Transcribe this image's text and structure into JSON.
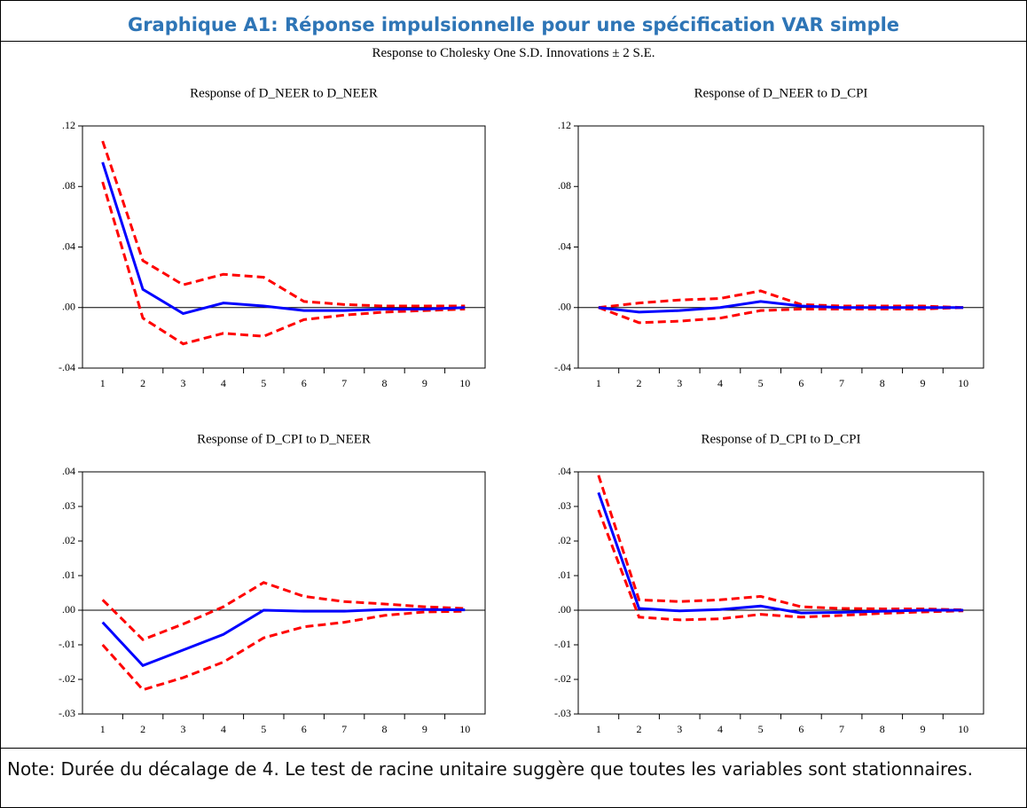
{
  "title": "Graphique A1: Réponse impulsionnelle pour une spécification VAR simple",
  "subtitle": "Response to Cholesky One S.D. Innovations ± 2 S.E.",
  "note": "Note: Durée du décalage de 4. Le test de racine unitaire suggère que toutes les variables sont stationnaires.",
  "chart_data": [
    {
      "type": "line",
      "title": "Response of D_NEER to D_NEER",
      "categories": [
        "1",
        "2",
        "3",
        "4",
        "5",
        "6",
        "7",
        "8",
        "9",
        "10"
      ],
      "ylim": [
        -0.04,
        0.12
      ],
      "yticks": [
        {
          "value": -0.04,
          "label": "-.04"
        },
        {
          "value": 0,
          "label": ".00"
        },
        {
          "value": 0.04,
          "label": ".04"
        },
        {
          "value": 0.08,
          "label": ".08"
        },
        {
          "value": 0.12,
          "label": ".12"
        }
      ],
      "series": [
        {
          "color": "#ff0000",
          "style": "dashed",
          "values": [
            0.11,
            0.031,
            0.015,
            0.022,
            0.02,
            0.004,
            0.002,
            0.001,
            0.001,
            0.001
          ]
        },
        {
          "color": "#ff0000",
          "style": "dashed",
          "values": [
            0.083,
            -0.007,
            -0.024,
            -0.017,
            -0.019,
            -0.008,
            -0.005,
            -0.003,
            -0.002,
            -0.001
          ]
        },
        {
          "color": "#0000ff",
          "style": "solid",
          "values": [
            0.096,
            0.012,
            -0.004,
            0.003,
            0.001,
            -0.002,
            -0.002,
            -0.001,
            -0.001,
            0
          ]
        }
      ]
    },
    {
      "type": "line",
      "title": "Response of D_NEER to D_CPI",
      "categories": [
        "1",
        "2",
        "3",
        "4",
        "5",
        "6",
        "7",
        "8",
        "9",
        "10"
      ],
      "ylim": [
        -0.04,
        0.12
      ],
      "yticks": [
        {
          "value": -0.04,
          "label": "-.04"
        },
        {
          "value": 0,
          "label": ".00"
        },
        {
          "value": 0.04,
          "label": ".04"
        },
        {
          "value": 0.08,
          "label": ".08"
        },
        {
          "value": 0.12,
          "label": ".12"
        }
      ],
      "series": [
        {
          "color": "#ff0000",
          "style": "dashed",
          "values": [
            0,
            0.003,
            0.005,
            0.006,
            0.011,
            0.002,
            0.001,
            0.001,
            0.001,
            0
          ]
        },
        {
          "color": "#ff0000",
          "style": "dashed",
          "values": [
            0,
            -0.01,
            -0.009,
            -0.007,
            -0.002,
            -0.001,
            -0.001,
            -0.001,
            -0.001,
            0
          ]
        },
        {
          "color": "#0000ff",
          "style": "solid",
          "values": [
            0,
            -0.003,
            -0.002,
            0,
            0.004,
            0.001,
            0,
            0,
            0,
            0
          ]
        }
      ]
    },
    {
      "type": "line",
      "title": "Response of D_CPI to D_NEER",
      "categories": [
        "1",
        "2",
        "3",
        "4",
        "5",
        "6",
        "7",
        "8",
        "9",
        "10"
      ],
      "ylim": [
        -0.03,
        0.04
      ],
      "yticks": [
        {
          "value": -0.03,
          "label": "-.03"
        },
        {
          "value": -0.02,
          "label": "-.02"
        },
        {
          "value": -0.01,
          "label": "-.01"
        },
        {
          "value": 0,
          "label": ".00"
        },
        {
          "value": 0.01,
          "label": ".01"
        },
        {
          "value": 0.02,
          "label": ".02"
        },
        {
          "value": 0.03,
          "label": ".03"
        },
        {
          "value": 0.04,
          "label": ".04"
        }
      ],
      "series": [
        {
          "color": "#ff0000",
          "style": "dashed",
          "values": [
            0.003,
            -0.0085,
            -0.004,
            0.001,
            0.008,
            0.004,
            0.0025,
            0.0018,
            0.001,
            0.0005
          ]
        },
        {
          "color": "#ff0000",
          "style": "dashed",
          "values": [
            -0.01,
            -0.023,
            -0.0195,
            -0.015,
            -0.008,
            -0.0048,
            -0.0035,
            -0.0015,
            -0.0005,
            -0.0003
          ]
        },
        {
          "color": "#0000ff",
          "style": "solid",
          "values": [
            -0.0035,
            -0.016,
            -0.0115,
            -0.007,
            0,
            -0.0003,
            -0.0003,
            0.0002,
            0.0002,
            0.0001
          ]
        }
      ]
    },
    {
      "type": "line",
      "title": "Response of D_CPI to D_CPI",
      "categories": [
        "1",
        "2",
        "3",
        "4",
        "5",
        "6",
        "7",
        "8",
        "9",
        "10"
      ],
      "ylim": [
        -0.03,
        0.04
      ],
      "yticks": [
        {
          "value": -0.03,
          "label": "-.03"
        },
        {
          "value": -0.02,
          "label": "-.02"
        },
        {
          "value": -0.01,
          "label": "-.01"
        },
        {
          "value": 0,
          "label": ".00"
        },
        {
          "value": 0.01,
          "label": ".01"
        },
        {
          "value": 0.02,
          "label": ".02"
        },
        {
          "value": 0.03,
          "label": ".03"
        },
        {
          "value": 0.04,
          "label": ".04"
        }
      ],
      "series": [
        {
          "color": "#ff0000",
          "style": "dashed",
          "values": [
            0.039,
            0.003,
            0.0025,
            0.003,
            0.004,
            0.001,
            0.0005,
            0.0004,
            0.0004,
            0.0001
          ]
        },
        {
          "color": "#ff0000",
          "style": "dashed",
          "values": [
            0.029,
            -0.002,
            -0.0028,
            -0.0025,
            -0.0012,
            -0.002,
            -0.0015,
            -0.0009,
            -0.0005,
            -0.0002
          ]
        },
        {
          "color": "#0000ff",
          "style": "solid",
          "values": [
            0.034,
            0.0005,
            -0.0002,
            0.0002,
            0.0012,
            -0.0008,
            -0.0006,
            -0.0003,
            0,
            0
          ]
        }
      ]
    }
  ]
}
